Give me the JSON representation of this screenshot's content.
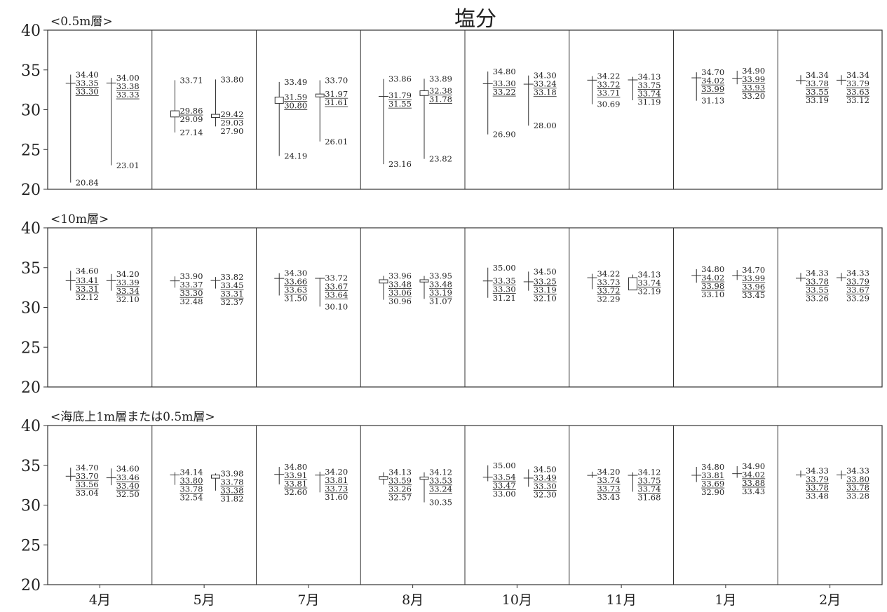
{
  "chart_data": {
    "type": "box",
    "title": "塩分",
    "categories": [
      "4月",
      "5月",
      "7月",
      "8月",
      "10月",
      "11月",
      "1月",
      "2月"
    ],
    "y_ticks": [
      "20",
      "25",
      "30",
      "35",
      "40"
    ],
    "ylim": [
      20,
      40
    ],
    "grid": false,
    "point_order": [
      "max",
      "upper",
      "median",
      "lower",
      "min"
    ],
    "panels": [
      {
        "label": "<0.5m層>",
        "stations": [
          [
            [
              34.4,
              33.35,
              33.3,
              null,
              20.84
            ],
            [
              34.0,
              33.38,
              33.33,
              null,
              23.01
            ]
          ],
          [
            [
              33.71,
              29.86,
              null,
              29.09,
              27.14
            ],
            [
              33.8,
              29.42,
              null,
              29.03,
              27.9
            ]
          ],
          [
            [
              33.49,
              31.59,
              30.8,
              null,
              24.19
            ],
            [
              33.7,
              31.97,
              31.61,
              null,
              26.01
            ]
          ],
          [
            [
              33.86,
              31.79,
              31.55,
              null,
              23.16
            ],
            [
              33.89,
              32.38,
              31.78,
              null,
              23.82
            ]
          ],
          [
            [
              34.8,
              33.3,
              33.22,
              null,
              26.9
            ],
            [
              34.3,
              33.24,
              33.18,
              null,
              28.0
            ]
          ],
          [
            [
              34.22,
              33.72,
              33.71,
              null,
              30.69
            ],
            [
              34.13,
              33.75,
              33.74,
              null,
              31.19
            ]
          ],
          [
            [
              34.7,
              34.02,
              33.99,
              null,
              31.13
            ],
            [
              34.9,
              33.99,
              33.93,
              33.2,
              null
            ]
          ],
          [
            [
              34.34,
              33.78,
              33.55,
              33.19,
              null
            ],
            [
              34.34,
              33.79,
              33.63,
              33.12,
              null
            ]
          ]
        ]
      },
      {
        "label": "<10m層>",
        "stations": [
          [
            [
              34.6,
              33.41,
              33.31,
              32.12,
              null
            ],
            [
              34.2,
              33.39,
              33.34,
              32.1,
              null
            ]
          ],
          [
            [
              33.9,
              33.37,
              33.3,
              32.48,
              null
            ],
            [
              33.82,
              33.45,
              33.31,
              32.37,
              null
            ]
          ],
          [
            [
              34.3,
              33.66,
              33.63,
              null,
              31.5
            ],
            [
              33.72,
              33.67,
              33.64,
              null,
              30.1
            ]
          ],
          [
            [
              33.96,
              33.48,
              33.06,
              null,
              30.96
            ],
            [
              33.95,
              33.48,
              33.19,
              null,
              31.07
            ]
          ],
          [
            [
              35.0,
              33.35,
              33.3,
              null,
              31.21
            ],
            [
              34.5,
              33.25,
              33.19,
              32.1,
              null
            ]
          ],
          [
            [
              34.22,
              33.73,
              33.72,
              32.29,
              null
            ],
            [
              34.13,
              33.74,
              null,
              32.19,
              null
            ]
          ],
          [
            [
              34.8,
              34.02,
              33.98,
              33.1,
              null
            ],
            [
              34.7,
              33.99,
              33.96,
              33.45,
              null
            ]
          ],
          [
            [
              34.33,
              33.78,
              33.55,
              33.26,
              null
            ],
            [
              34.33,
              33.79,
              33.67,
              33.29,
              null
            ]
          ]
        ]
      },
      {
        "label": "<海底上1m層または0.5m層>",
        "stations": [
          [
            [
              34.7,
              33.7,
              33.56,
              33.04,
              null
            ],
            [
              34.6,
              33.46,
              33.4,
              32.5,
              null
            ]
          ],
          [
            [
              34.14,
              33.8,
              33.78,
              32.54,
              null
            ],
            [
              33.98,
              33.78,
              33.38,
              null,
              31.82
            ]
          ],
          [
            [
              34.8,
              33.91,
              33.81,
              32.6,
              null
            ],
            [
              34.2,
              33.81,
              33.73,
              null,
              31.6
            ]
          ],
          [
            [
              34.13,
              33.59,
              33.26,
              32.57,
              null
            ],
            [
              34.12,
              33.53,
              33.24,
              null,
              30.35
            ]
          ],
          [
            [
              35.0,
              33.54,
              33.47,
              33.0,
              null
            ],
            [
              34.5,
              33.49,
              33.3,
              32.3,
              null
            ]
          ],
          [
            [
              34.2,
              33.74,
              33.73,
              33.43,
              null
            ],
            [
              34.12,
              33.75,
              33.74,
              null,
              31.68
            ]
          ],
          [
            [
              34.8,
              33.81,
              33.69,
              32.9,
              null
            ],
            [
              34.9,
              34.02,
              33.88,
              33.43,
              null
            ]
          ],
          [
            [
              34.33,
              33.79,
              33.78,
              33.48,
              null
            ],
            [
              34.33,
              33.8,
              33.78,
              33.28,
              null
            ]
          ]
        ]
      }
    ]
  }
}
